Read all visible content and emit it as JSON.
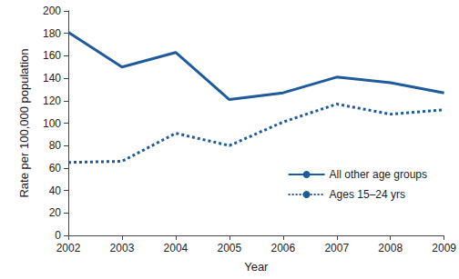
{
  "chart_data": {
    "type": "line",
    "x": [
      2002,
      2003,
      2004,
      2005,
      2006,
      2007,
      2008,
      2009
    ],
    "xlim": [
      2002,
      2009
    ],
    "xticks": [
      2002,
      2003,
      2004,
      2005,
      2006,
      2007,
      2008,
      2009
    ],
    "ylim": [
      0,
      200
    ],
    "yticks": [
      0,
      20,
      40,
      60,
      80,
      100,
      120,
      140,
      160,
      180,
      200
    ],
    "x_label": "Year",
    "y_label": "Rate per 100,000 population",
    "grid": false,
    "legend": "lower right",
    "series": [
      {
        "name": "All other age groups",
        "color": "#1f5b9a",
        "line_style": "solid",
        "values": [
          181,
          150,
          163,
          121,
          127,
          141,
          136,
          127
        ]
      },
      {
        "name": "Ages 15–24 yrs",
        "color": "#1f5b9a",
        "line_style": "dotted",
        "values": [
          65,
          66,
          91,
          80,
          101,
          117,
          108,
          112
        ]
      }
    ]
  }
}
